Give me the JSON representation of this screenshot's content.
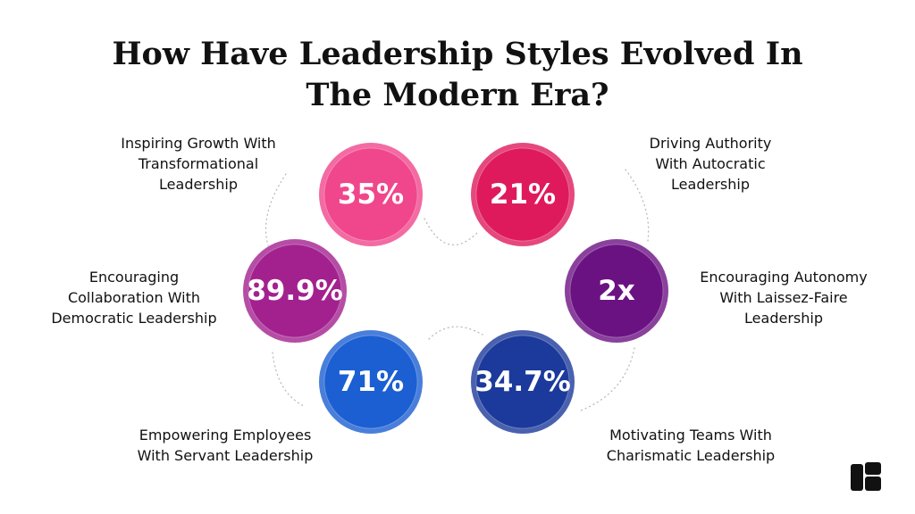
{
  "title": [
    "How Have Leadership Styles Evolved In",
    "The Modern Era?"
  ],
  "items": [
    {
      "stat": "35%",
      "label": [
        "Inspiring Growth With",
        "Transformational",
        "Leadership"
      ],
      "color": "#f0468c"
    },
    {
      "stat": "21%",
      "label": [
        "Driving Authority",
        "With Autocratic",
        "Leadership"
      ],
      "color": "#df1a5c"
    },
    {
      "stat": "89.9%",
      "label": [
        "Encouraging",
        "Collaboration With",
        "Democratic Leadership"
      ],
      "color": "#a3218f"
    },
    {
      "stat": "2x",
      "label": [
        "Encouraging Autonomy",
        "With Laissez-Faire",
        "Leadership"
      ],
      "color": "#6b1283"
    },
    {
      "stat": "71%",
      "label": [
        "Empowering Employees",
        "With Servant Leadership"
      ],
      "color": "#1b5fd2"
    },
    {
      "stat": "34.7%",
      "label": [
        "Motivating Teams With",
        "Charismatic Leadership"
      ],
      "color": "#1b3a9b"
    }
  ]
}
